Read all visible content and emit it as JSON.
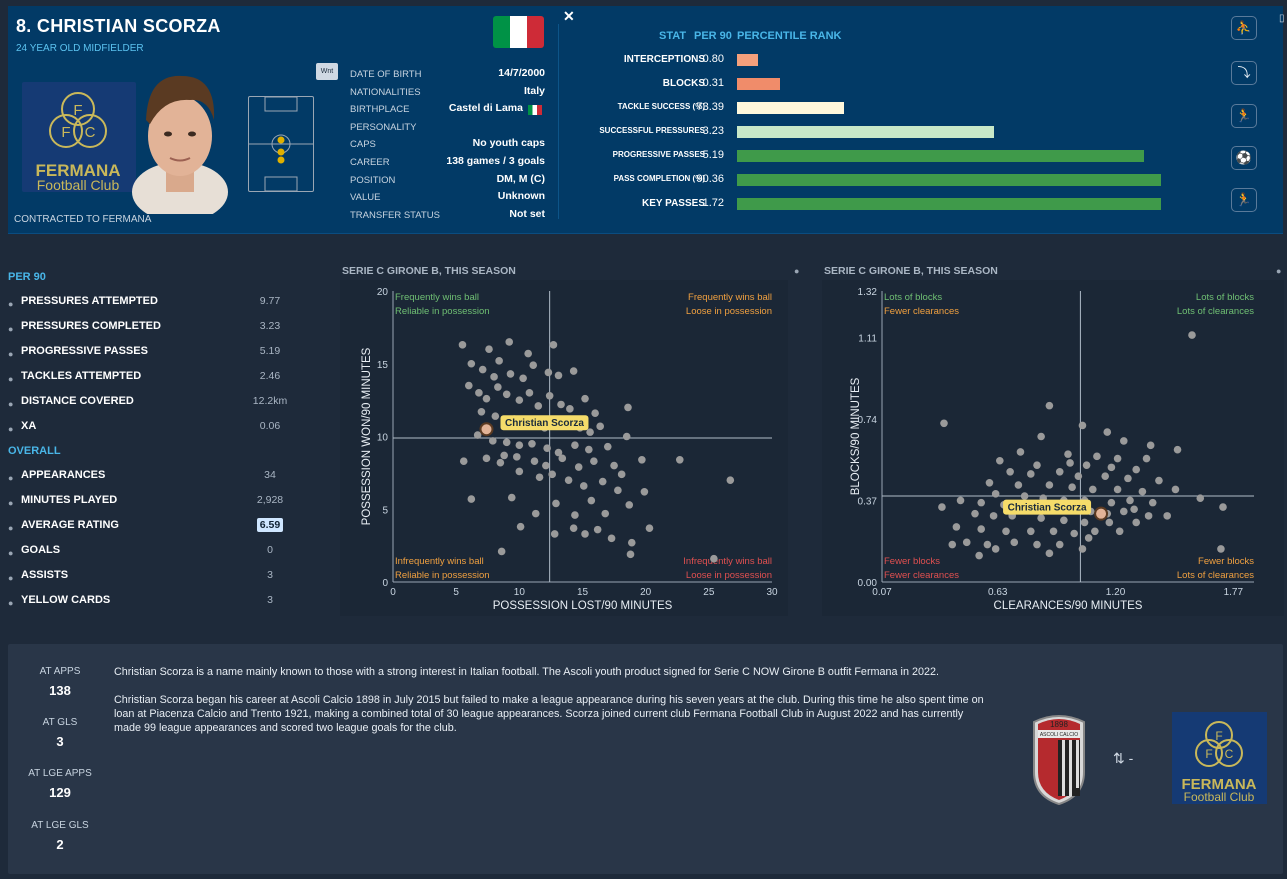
{
  "player": {
    "name": "8. CHRISTIAN SCORZA",
    "subtitle": "24 YEAR OLD MIDFIELDER",
    "contracted": "CONTRACTED TO FERMANA",
    "wnt": "Wnt"
  },
  "club": {
    "name_line1": "FERMANA",
    "name_line2": "Football Club",
    "letters": [
      "F",
      "F",
      "C"
    ]
  },
  "info": [
    {
      "label": "DATE OF BIRTH",
      "value": "14/7/2000"
    },
    {
      "label": "NATIONALITIES",
      "value": "Italy"
    },
    {
      "label": "BIRTHPLACE",
      "value": "Castel di Lama"
    },
    {
      "label": "PERSONALITY",
      "value": ""
    },
    {
      "label": "CAPS",
      "value": "No youth caps"
    },
    {
      "label": "CAREER",
      "value": "138 games /   3  goals"
    },
    {
      "label": "POSITION",
      "value": "DM, M (C)"
    },
    {
      "label": "VALUE",
      "value": "Unknown"
    },
    {
      "label": "TRANSFER STATUS",
      "value": "Not set"
    }
  ],
  "flag_colors": [
    "#009246",
    "#ffffff",
    "#ce2b37"
  ],
  "stats_header": {
    "stat": "STAT",
    "per90": "PER 90",
    "rank": "PERCENTILE RANK"
  },
  "stats": [
    {
      "label": "INTERCEPTIONS",
      "value": "0.80",
      "percentile": 5,
      "color": "#f4a07c"
    },
    {
      "label": "BLOCKS",
      "value": "0.31",
      "percentile": 10,
      "color": "#f08c6a"
    },
    {
      "label": "TACKLE SUCCESS (%)",
      "value": "73.39",
      "percentile": 25,
      "color": "#fff8dc"
    },
    {
      "label": "SUCCESSFUL PRESSURES",
      "value": "3.23",
      "percentile": 60,
      "color": "#c8e8c8"
    },
    {
      "label": "PROGRESSIVE PASSES",
      "value": "5.19",
      "percentile": 95,
      "color": "#3f9a4a"
    },
    {
      "label": "PASS COMPLETION (%)",
      "value": "90.36",
      "percentile": 99,
      "color": "#3f9a4a"
    },
    {
      "label": "KEY PASSES",
      "value": "1.72",
      "percentile": 99,
      "color": "#3f9a4a"
    }
  ],
  "side_icons": [
    "tackle-icon",
    "slide-icon",
    "run-icon",
    "dribble-icon",
    "shoot-icon"
  ],
  "per90_title": "PER 90",
  "per90": [
    {
      "label": "PRESSURES ATTEMPTED",
      "value": "9.77"
    },
    {
      "label": "PRESSURES COMPLETED",
      "value": "3.23"
    },
    {
      "label": "PROGRESSIVE PASSES",
      "value": "5.19"
    },
    {
      "label": "TACKLES ATTEMPTED",
      "value": "2.46"
    },
    {
      "label": "DISTANCE COVERED",
      "value": "12.2km"
    },
    {
      "label": "XA",
      "value": "0.06"
    }
  ],
  "overall_title": "OVERALL",
  "overall": [
    {
      "label": "APPEARANCES",
      "value": "34"
    },
    {
      "label": "MINUTES PLAYED",
      "value": "2,928"
    },
    {
      "label": "AVERAGE RATING",
      "value": "6.59"
    },
    {
      "label": "GOALS",
      "value": "0"
    },
    {
      "label": "ASSISTS",
      "value": "3"
    },
    {
      "label": "YELLOW CARDS",
      "value": "3"
    }
  ],
  "chart_data": [
    {
      "type": "scatter",
      "title": "SERIE C GIRONE B, THIS SEASON",
      "xlabel": "POSSESSION LOST/90 MINUTES",
      "ylabel": "POSSESSION WON/90 MINUTES",
      "xlim": [
        0,
        30
      ],
      "ylim": [
        0,
        20
      ],
      "xticks": [
        "0",
        "5",
        "10",
        "15",
        "20",
        "25",
        "30"
      ],
      "yticks": [
        "0",
        "5",
        "10",
        "15",
        "20"
      ],
      "xmid": 12.4,
      "ymid": 9.9,
      "quadrants": {
        "tl": [
          "Frequently wins ball",
          "Reliable in possession"
        ],
        "tr": [
          "Frequently wins ball",
          "Loose in possession"
        ],
        "bl": [
          "Infrequently wins ball",
          "Reliable in possession"
        ],
        "br": [
          "Infrequently wins ball",
          "Loose in possession"
        ]
      },
      "highlight": {
        "label": "Christian Scorza",
        "x": 7.4,
        "y": 10.5
      },
      "points": [
        [
          5.5,
          16.3
        ],
        [
          7.6,
          16.0
        ],
        [
          9.2,
          16.5
        ],
        [
          12.7,
          16.3
        ],
        [
          10.7,
          15.7
        ],
        [
          6.2,
          15.0
        ],
        [
          7.1,
          14.6
        ],
        [
          8.0,
          14.1
        ],
        [
          8.4,
          15.2
        ],
        [
          9.3,
          14.3
        ],
        [
          10.3,
          14.0
        ],
        [
          11.1,
          14.9
        ],
        [
          12.3,
          14.4
        ],
        [
          13.1,
          14.2
        ],
        [
          14.3,
          14.5
        ],
        [
          6.0,
          13.5
        ],
        [
          6.8,
          13.0
        ],
        [
          7.4,
          12.6
        ],
        [
          8.3,
          13.4
        ],
        [
          9.0,
          12.9
        ],
        [
          10.0,
          12.5
        ],
        [
          10.8,
          13.0
        ],
        [
          11.5,
          12.1
        ],
        [
          12.4,
          12.8
        ],
        [
          13.3,
          12.2
        ],
        [
          14.0,
          11.9
        ],
        [
          15.2,
          12.6
        ],
        [
          16.0,
          11.6
        ],
        [
          7.0,
          11.7
        ],
        [
          8.1,
          11.4
        ],
        [
          9.6,
          11.2
        ],
        [
          10.3,
          11.0
        ],
        [
          11.2,
          10.8
        ],
        [
          12.0,
          10.6
        ],
        [
          13.6,
          10.9
        ],
        [
          14.8,
          10.6
        ],
        [
          15.6,
          10.3
        ],
        [
          16.4,
          10.7
        ],
        [
          18.6,
          12.0
        ],
        [
          6.7,
          10.1
        ],
        [
          7.9,
          9.7
        ],
        [
          9.0,
          9.6
        ],
        [
          10.0,
          9.4
        ],
        [
          11.0,
          9.5
        ],
        [
          12.2,
          9.2
        ],
        [
          13.1,
          8.9
        ],
        [
          14.4,
          9.4
        ],
        [
          15.5,
          9.1
        ],
        [
          17.0,
          9.3
        ],
        [
          18.5,
          10.0
        ],
        [
          5.6,
          8.3
        ],
        [
          7.4,
          8.5
        ],
        [
          8.5,
          8.2
        ],
        [
          9.8,
          8.6
        ],
        [
          11.2,
          8.3
        ],
        [
          12.1,
          8.0
        ],
        [
          13.4,
          8.5
        ],
        [
          14.7,
          7.9
        ],
        [
          15.9,
          8.3
        ],
        [
          17.5,
          8.0
        ],
        [
          18.1,
          7.4
        ],
        [
          19.7,
          8.4
        ],
        [
          10.0,
          7.6
        ],
        [
          11.6,
          7.2
        ],
        [
          12.6,
          7.4
        ],
        [
          13.9,
          7.0
        ],
        [
          15.1,
          6.6
        ],
        [
          16.6,
          6.9
        ],
        [
          17.8,
          6.3
        ],
        [
          6.2,
          5.7
        ],
        [
          9.4,
          5.8
        ],
        [
          11.3,
          4.7
        ],
        [
          12.9,
          5.4
        ],
        [
          14.4,
          4.6
        ],
        [
          15.7,
          5.6
        ],
        [
          16.8,
          4.7
        ],
        [
          18.7,
          5.3
        ],
        [
          19.9,
          6.2
        ],
        [
          10.1,
          3.8
        ],
        [
          12.8,
          3.3
        ],
        [
          14.3,
          3.7
        ],
        [
          15.2,
          3.3
        ],
        [
          16.2,
          3.6
        ],
        [
          17.3,
          3.0
        ],
        [
          18.9,
          2.7
        ],
        [
          20.3,
          3.7
        ],
        [
          18.8,
          1.9
        ],
        [
          8.6,
          2.1
        ],
        [
          25.4,
          1.6
        ],
        [
          26.7,
          7.0
        ],
        [
          22.7,
          8.4
        ],
        [
          8.8,
          8.7
        ]
      ]
    },
    {
      "type": "scatter",
      "title": "SERIE C GIRONE B, THIS SEASON",
      "xlabel": "CLEARANCES/90 MINUTES",
      "ylabel": "BLOCKS/90 MINUTES",
      "xlim": [
        0.07,
        1.87
      ],
      "ylim": [
        0,
        1.32
      ],
      "xticks": [
        "0.07",
        "0.63",
        "1.20",
        "1.77"
      ],
      "yticks": [
        "0.00",
        "0.37",
        "0.74",
        "1.11",
        "1.32"
      ],
      "xmid": 1.03,
      "ymid": 0.39,
      "quadrants": {
        "tl": [
          "Lots of blocks",
          "Fewer clearances"
        ],
        "tr": [
          "Lots of blocks",
          "Lots of clearances"
        ],
        "bl": [
          "Fewer blocks",
          "Fewer clearances"
        ],
        "br": [
          "Fewer blocks",
          "Lots of clearances"
        ]
      },
      "highlight": {
        "label": "Christian Scorza",
        "x": 1.13,
        "y": 0.31
      },
      "points": [
        [
          1.57,
          1.12
        ],
        [
          0.88,
          0.8
        ],
        [
          0.37,
          0.72
        ],
        [
          1.04,
          0.71
        ],
        [
          1.16,
          0.68
        ],
        [
          0.84,
          0.66
        ],
        [
          1.24,
          0.64
        ],
        [
          1.37,
          0.62
        ],
        [
          1.5,
          0.6
        ],
        [
          0.74,
          0.59
        ],
        [
          0.97,
          0.58
        ],
        [
          1.11,
          0.57
        ],
        [
          1.21,
          0.56
        ],
        [
          1.35,
          0.56
        ],
        [
          0.64,
          0.55
        ],
        [
          0.82,
          0.53
        ],
        [
          0.98,
          0.54
        ],
        [
          1.06,
          0.53
        ],
        [
          1.18,
          0.52
        ],
        [
          1.3,
          0.51
        ],
        [
          0.69,
          0.5
        ],
        [
          0.79,
          0.49
        ],
        [
          0.93,
          0.5
        ],
        [
          1.02,
          0.48
        ],
        [
          1.15,
          0.48
        ],
        [
          1.26,
          0.47
        ],
        [
          1.41,
          0.46
        ],
        [
          0.59,
          0.45
        ],
        [
          0.73,
          0.44
        ],
        [
          0.88,
          0.44
        ],
        [
          0.99,
          0.43
        ],
        [
          1.09,
          0.42
        ],
        [
          1.21,
          0.42
        ],
        [
          1.33,
          0.41
        ],
        [
          1.49,
          0.42
        ],
        [
          0.62,
          0.4
        ],
        [
          0.76,
          0.39
        ],
        [
          0.85,
          0.38
        ],
        [
          0.95,
          0.37
        ],
        [
          1.05,
          0.37
        ],
        [
          1.18,
          0.36
        ],
        [
          1.27,
          0.37
        ],
        [
          1.38,
          0.36
        ],
        [
          1.61,
          0.38
        ],
        [
          0.45,
          0.37
        ],
        [
          0.55,
          0.36
        ],
        [
          0.66,
          0.35
        ],
        [
          0.78,
          0.34
        ],
        [
          0.9,
          0.33
        ],
        [
          0.99,
          0.33
        ],
        [
          1.08,
          0.32
        ],
        [
          1.16,
          0.31
        ],
        [
          1.24,
          0.32
        ],
        [
          1.36,
          0.3
        ],
        [
          1.72,
          0.34
        ],
        [
          0.36,
          0.34
        ],
        [
          0.52,
          0.31
        ],
        [
          0.61,
          0.3
        ],
        [
          0.7,
          0.3
        ],
        [
          0.84,
          0.29
        ],
        [
          0.95,
          0.28
        ],
        [
          1.05,
          0.27
        ],
        [
          1.17,
          0.27
        ],
        [
          1.3,
          0.27
        ],
        [
          1.45,
          0.3
        ],
        [
          0.43,
          0.25
        ],
        [
          0.55,
          0.24
        ],
        [
          0.67,
          0.23
        ],
        [
          0.79,
          0.23
        ],
        [
          0.9,
          0.23
        ],
        [
          1.0,
          0.22
        ],
        [
          1.1,
          0.23
        ],
        [
          1.22,
          0.23
        ],
        [
          0.48,
          0.18
        ],
        [
          0.58,
          0.17
        ],
        [
          0.71,
          0.18
        ],
        [
          0.82,
          0.17
        ],
        [
          0.93,
          0.17
        ],
        [
          1.04,
          0.15
        ],
        [
          0.41,
          0.17
        ],
        [
          0.54,
          0.12
        ],
        [
          0.62,
          0.15
        ],
        [
          1.07,
          0.2
        ],
        [
          1.71,
          0.15
        ],
        [
          0.88,
          0.13
        ],
        [
          1.29,
          0.33
        ]
      ]
    }
  ],
  "bottom": {
    "stats": [
      {
        "label": "AT APPS",
        "value": "138"
      },
      {
        "label": "AT GLS",
        "value": "3"
      },
      {
        "label": "AT LGE APPS",
        "value": "129"
      },
      {
        "label": "AT LGE GLS",
        "value": "2"
      }
    ],
    "bio1": "Christian Scorza is a name mainly known to those with a strong interest in Italian football. The Ascoli youth product signed for Serie C NOW Girone B outfit Fermana in 2022.",
    "bio2": "Christian Scorza began his career at Ascoli Calcio 1898 in July 2015 but failed to make a league appearance during his seven years at the club. During this time he also spent time on loan at Piacenza Calcio and Trento 1921, making a combined total of 30 league appearances. Scorza joined current club Fermana Football Club in August 2022 and has currently made 99 league appearances and scored two league goals for the club.",
    "ascoli_year": "1898",
    "ascoli_name": "ASCOLI CALCIO",
    "transfer_text": "-"
  }
}
